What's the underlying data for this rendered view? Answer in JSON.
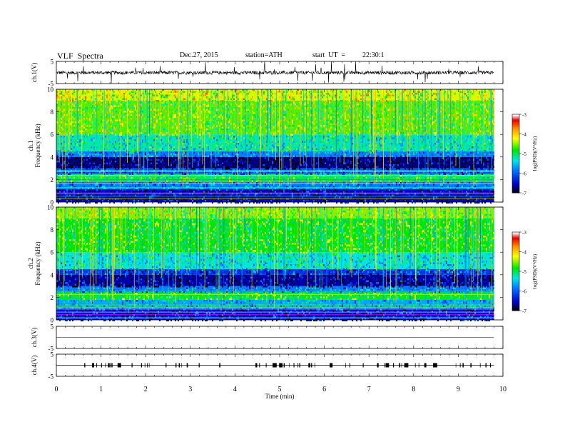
{
  "header": {
    "title": "VLF  Spectra",
    "date": "Dec.27, 2015",
    "station": "station=ATH",
    "start_label": "start  UT  =",
    "start_time": "22:30:1"
  },
  "chart_data": [
    {
      "type": "line",
      "ylabel": "ch.1(V)",
      "ylim": [
        -5,
        5
      ],
      "yticks": [
        "5",
        "-5"
      ],
      "x_range": [
        0,
        9.8
      ],
      "baseline": -0.1,
      "description": "dense waveform around 0 V with frequent spikes"
    },
    {
      "type": "heatmap",
      "ylabel": "ch.1\nFrequency (kHz)",
      "ylim": [
        0,
        10
      ],
      "yticks": [
        "10",
        "8",
        "6",
        "4",
        "2",
        "0"
      ],
      "x_range": [
        0,
        9.8
      ],
      "colorbar": {
        "label": "log(PSD)(V²/Hz)",
        "range": [
          -7,
          -3
        ],
        "ticks": [
          "-3",
          "-4",
          "-5",
          "-6",
          "-7"
        ],
        "colors": [
          "#ffffff",
          "#ff0000",
          "#ffa500",
          "#ffff00",
          "#00ff00",
          "#00ffff",
          "#0000ff",
          "#000000"
        ]
      },
      "bands": [
        {
          "f": [
            9.0,
            10.0
          ],
          "level": -4.3
        },
        {
          "f": [
            6.0,
            9.0
          ],
          "level": -4.6
        },
        {
          "f": [
            4.5,
            6.0
          ],
          "level": -5.2
        },
        {
          "f": [
            4.0,
            4.5
          ],
          "level": -5.8
        },
        {
          "f": [
            3.0,
            4.0
          ],
          "level": -6.7
        },
        {
          "f": [
            2.5,
            3.0
          ],
          "level": -6.0
        },
        {
          "f": [
            1.8,
            2.5
          ],
          "level": -5.0
        },
        {
          "f": [
            1.2,
            1.8
          ],
          "level": -5.8
        },
        {
          "f": [
            0.0,
            1.2
          ],
          "level": -6.5
        }
      ]
    },
    {
      "type": "heatmap",
      "ylabel": "ch.2\nFrequency (kHz)",
      "ylim": [
        0,
        10
      ],
      "yticks": [
        "10",
        "8",
        "6",
        "4",
        "2",
        "0"
      ],
      "x_range": [
        0,
        9.8
      ],
      "colorbar": {
        "label": "log(PSD)(V²/Hz)",
        "range": [
          -7,
          -3
        ],
        "ticks": [
          "-3",
          "-4",
          "-5",
          "-6",
          "-7"
        ],
        "colors": [
          "#ffffff",
          "#ff0000",
          "#ffa500",
          "#ffff00",
          "#00ff00",
          "#00ffff",
          "#0000ff",
          "#000000"
        ]
      },
      "bands": [
        {
          "f": [
            9.0,
            10.0
          ],
          "level": -4.5
        },
        {
          "f": [
            6.0,
            9.0
          ],
          "level": -4.8
        },
        {
          "f": [
            4.5,
            6.0
          ],
          "level": -5.3
        },
        {
          "f": [
            4.0,
            4.5
          ],
          "level": -6.2
        },
        {
          "f": [
            3.0,
            4.0
          ],
          "level": -6.6
        },
        {
          "f": [
            2.5,
            3.0
          ],
          "level": -5.8
        },
        {
          "f": [
            1.8,
            2.5
          ],
          "level": -4.9
        },
        {
          "f": [
            1.0,
            1.8
          ],
          "level": -5.6
        },
        {
          "f": [
            0.0,
            1.0
          ],
          "level": -6.4
        }
      ]
    },
    {
      "type": "line",
      "ylabel": "ch.3(V)",
      "ylim": [
        -5,
        5
      ],
      "yticks": [
        "5",
        "-5"
      ],
      "x_range": [
        0,
        9.8
      ],
      "baseline": 0
    },
    {
      "type": "line",
      "ylabel": "ch.4(V)",
      "ylim": [
        -5,
        5
      ],
      "yticks": [
        "5",
        "-5"
      ],
      "x_range": [
        0,
        9.8
      ],
      "baseline": 0,
      "description": "flat line near 0 V with intermittent short bursts"
    }
  ],
  "x_axis": {
    "label": "Time  (min)",
    "xlim": [
      0,
      10
    ],
    "ticks": [
      "0",
      "1",
      "2",
      "3",
      "4",
      "5",
      "6",
      "7",
      "8",
      "9",
      "10"
    ]
  }
}
